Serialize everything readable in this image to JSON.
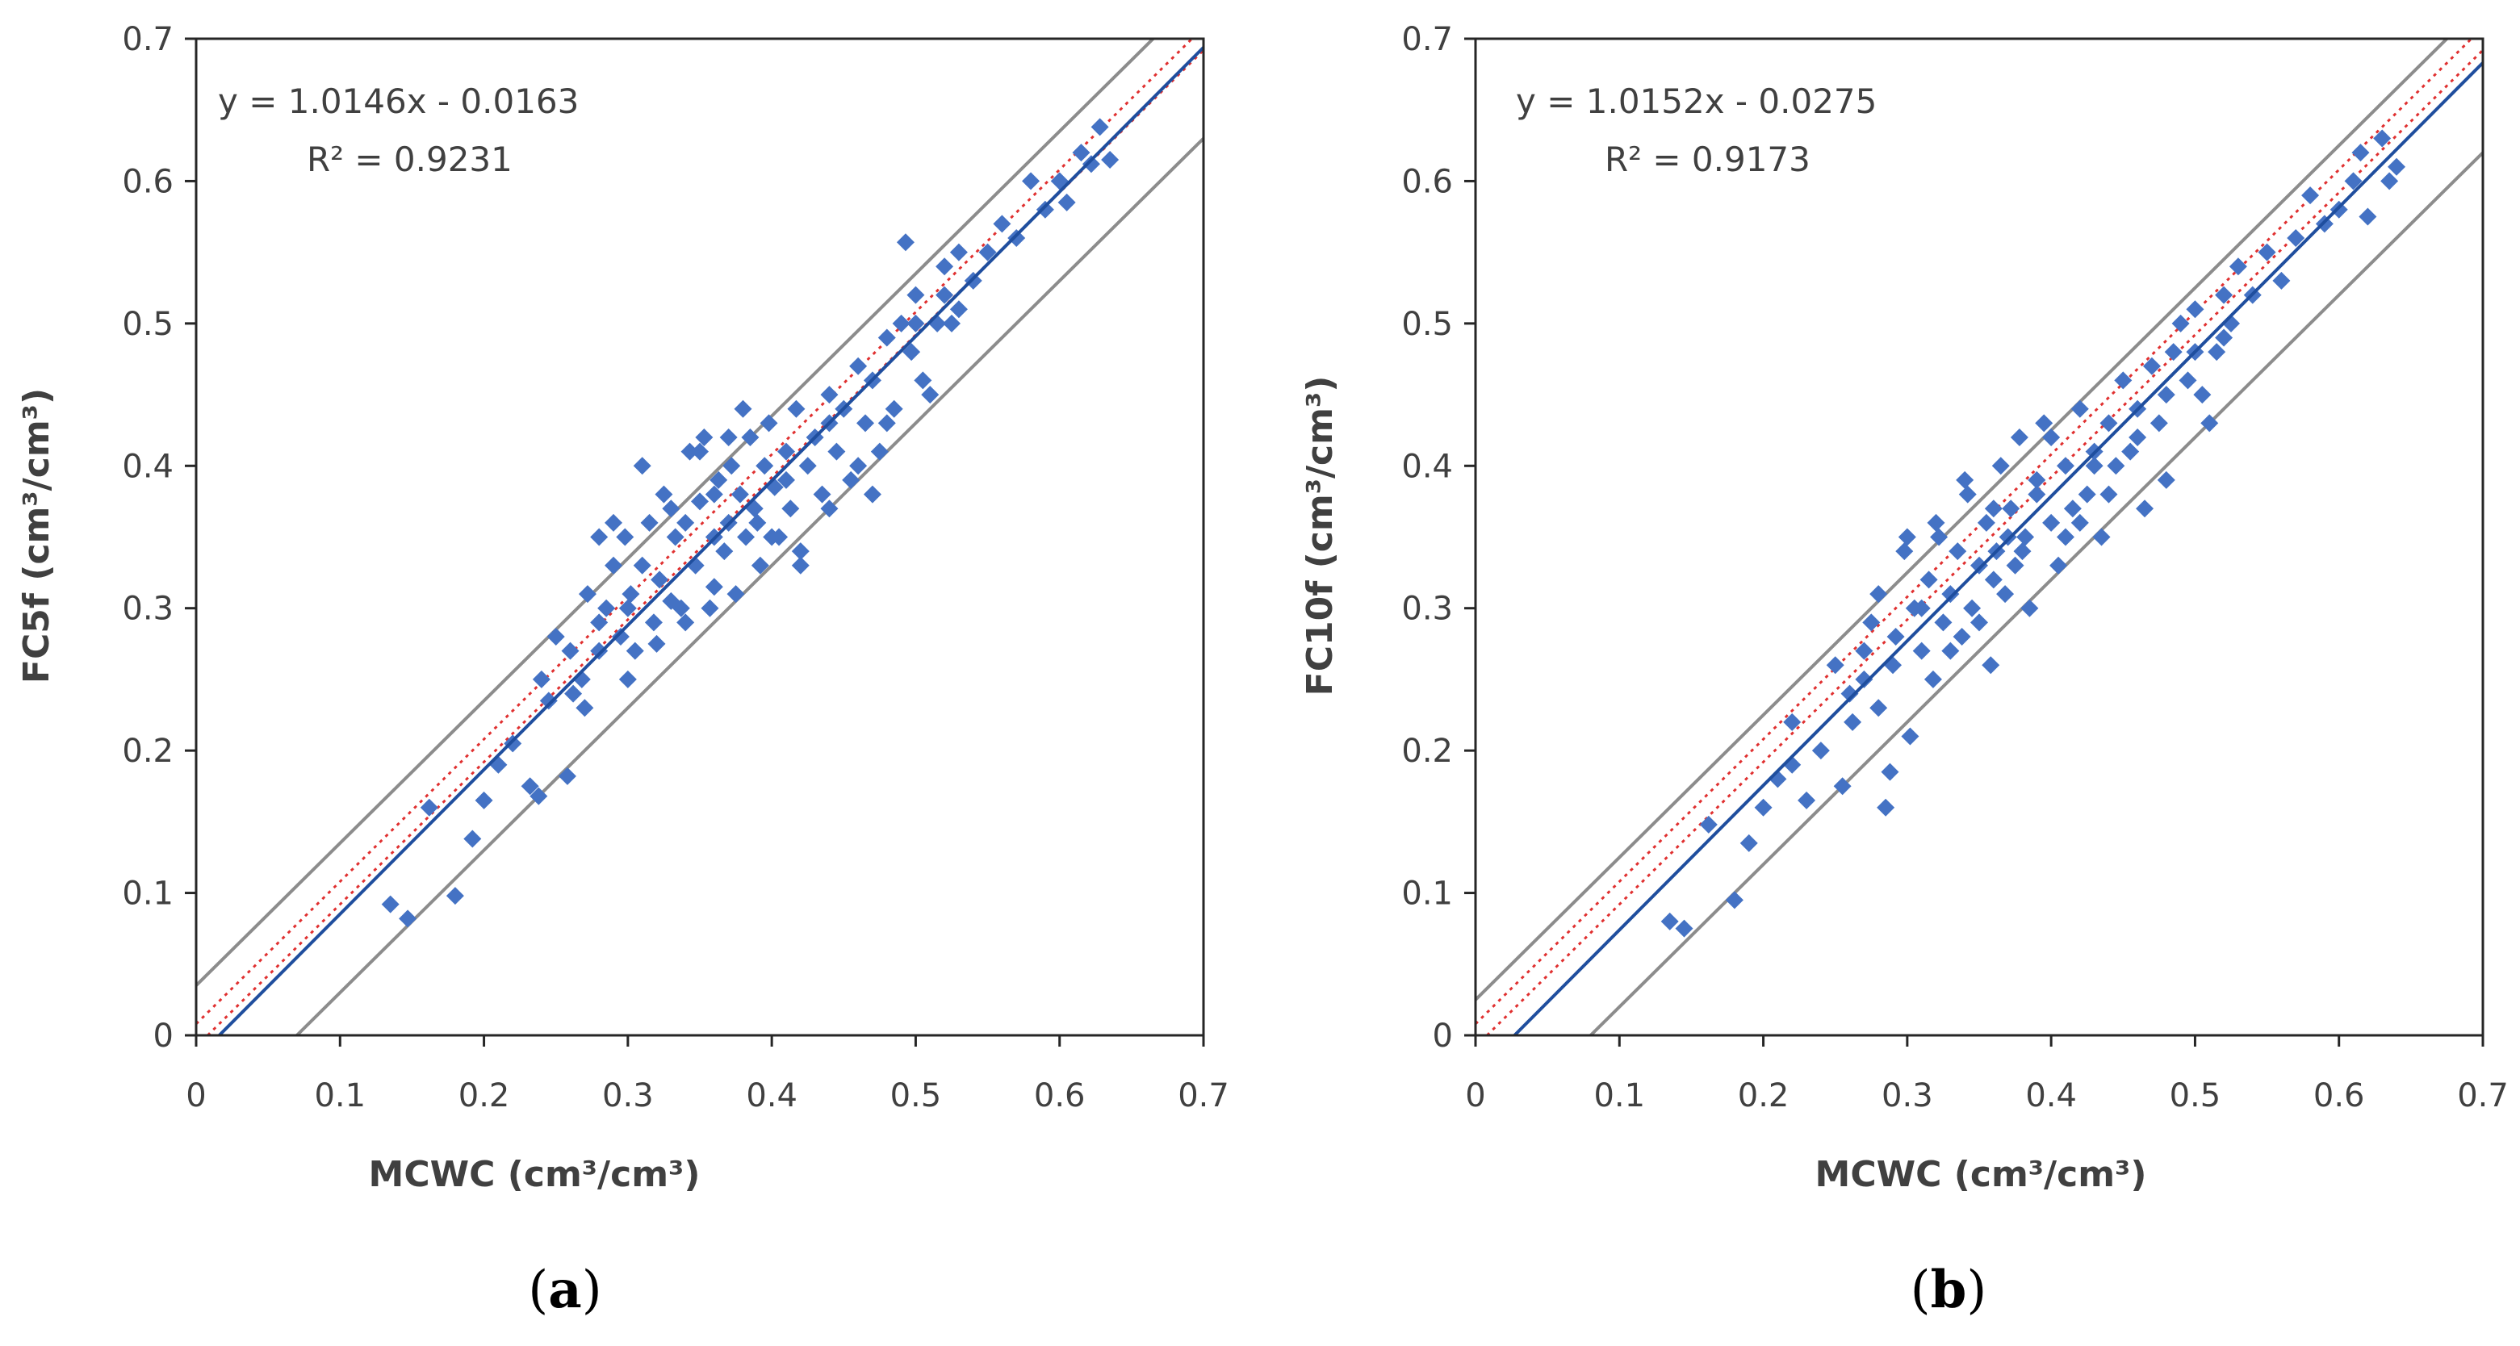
{
  "colors": {
    "points": "#4472C4",
    "fit_line": "#1F4E9E",
    "one_to_one": "#E03030",
    "bounds": "#8C8C8C",
    "axes": "#262626"
  },
  "chart_data": [
    {
      "type": "scatter",
      "panel_label": "a",
      "xlabel": "MCWC (cm³/cm³)",
      "ylabel": "FC5f (cm³/cm³)",
      "equation": "y = 1.0146x - 0.0163",
      "r2": "R² = 0.9231",
      "slope": 1.0146,
      "intercept": -0.0163,
      "band_offsets": [
        0.035,
        -0.07
      ],
      "xlim": [
        0,
        0.7
      ],
      "ylim": [
        0,
        0.7
      ],
      "xticks": [
        "0",
        "0.1",
        "0.2",
        "0.3",
        "0.4",
        "0.5",
        "0.6",
        "0.7"
      ],
      "yticks": [
        "0",
        "0.1",
        "0.2",
        "0.3",
        "0.4",
        "0.5",
        "0.6",
        "0.7"
      ],
      "points": [
        [
          0.135,
          0.092
        ],
        [
          0.147,
          0.082
        ],
        [
          0.162,
          0.16
        ],
        [
          0.18,
          0.098
        ],
        [
          0.192,
          0.138
        ],
        [
          0.2,
          0.165
        ],
        [
          0.21,
          0.19
        ],
        [
          0.22,
          0.205
        ],
        [
          0.232,
          0.175
        ],
        [
          0.238,
          0.168
        ],
        [
          0.245,
          0.235
        ],
        [
          0.25,
          0.28
        ],
        [
          0.258,
          0.182
        ],
        [
          0.262,
          0.24
        ],
        [
          0.268,
          0.25
        ],
        [
          0.272,
          0.31
        ],
        [
          0.28,
          0.27
        ],
        [
          0.285,
          0.3
        ],
        [
          0.29,
          0.33
        ],
        [
          0.295,
          0.28
        ],
        [
          0.298,
          0.35
        ],
        [
          0.302,
          0.31
        ],
        [
          0.305,
          0.27
        ],
        [
          0.31,
          0.33
        ],
        [
          0.315,
          0.36
        ],
        [
          0.318,
          0.29
        ],
        [
          0.322,
          0.32
        ],
        [
          0.325,
          0.38
        ],
        [
          0.33,
          0.305
        ],
        [
          0.333,
          0.35
        ],
        [
          0.337,
          0.3
        ],
        [
          0.34,
          0.36
        ],
        [
          0.343,
          0.41
        ],
        [
          0.347,
          0.33
        ],
        [
          0.35,
          0.375
        ],
        [
          0.353,
          0.42
        ],
        [
          0.357,
          0.3
        ],
        [
          0.36,
          0.35
        ],
        [
          0.363,
          0.39
        ],
        [
          0.367,
          0.34
        ],
        [
          0.37,
          0.36
        ],
        [
          0.372,
          0.4
        ],
        [
          0.375,
          0.31
        ],
        [
          0.378,
          0.38
        ],
        [
          0.382,
          0.35
        ],
        [
          0.385,
          0.42
        ],
        [
          0.388,
          0.37
        ],
        [
          0.392,
          0.33
        ],
        [
          0.395,
          0.4
        ],
        [
          0.398,
          0.43
        ],
        [
          0.402,
          0.385
        ],
        [
          0.405,
          0.35
        ],
        [
          0.41,
          0.41
        ],
        [
          0.413,
          0.37
        ],
        [
          0.417,
          0.44
        ],
        [
          0.42,
          0.34
        ],
        [
          0.425,
          0.4
        ],
        [
          0.43,
          0.42
        ],
        [
          0.435,
          0.38
        ],
        [
          0.44,
          0.45
        ],
        [
          0.445,
          0.41
        ],
        [
          0.45,
          0.44
        ],
        [
          0.455,
          0.39
        ],
        [
          0.46,
          0.47
        ],
        [
          0.465,
          0.43
        ],
        [
          0.47,
          0.46
        ],
        [
          0.475,
          0.41
        ],
        [
          0.48,
          0.49
        ],
        [
          0.485,
          0.44
        ],
        [
          0.49,
          0.5
        ],
        [
          0.493,
          0.557
        ],
        [
          0.497,
          0.48
        ],
        [
          0.5,
          0.52
        ],
        [
          0.505,
          0.46
        ],
        [
          0.51,
          0.45
        ],
        [
          0.515,
          0.5
        ],
        [
          0.52,
          0.54
        ],
        [
          0.525,
          0.5
        ],
        [
          0.53,
          0.55
        ],
        [
          0.54,
          0.53
        ],
        [
          0.55,
          0.55
        ],
        [
          0.56,
          0.57
        ],
        [
          0.57,
          0.56
        ],
        [
          0.58,
          0.6
        ],
        [
          0.59,
          0.58
        ],
        [
          0.6,
          0.6
        ],
        [
          0.605,
          0.585
        ],
        [
          0.615,
          0.62
        ],
        [
          0.622,
          0.612
        ],
        [
          0.628,
          0.638
        ],
        [
          0.635,
          0.615
        ],
        [
          0.31,
          0.4
        ],
        [
          0.34,
          0.29
        ],
        [
          0.29,
          0.36
        ],
        [
          0.36,
          0.315
        ],
        [
          0.28,
          0.35
        ],
        [
          0.4,
          0.35
        ],
        [
          0.27,
          0.23
        ],
        [
          0.3,
          0.25
        ],
        [
          0.47,
          0.38
        ],
        [
          0.44,
          0.37
        ],
        [
          0.42,
          0.33
        ],
        [
          0.26,
          0.27
        ],
        [
          0.35,
          0.41
        ],
        [
          0.38,
          0.44
        ],
        [
          0.24,
          0.25
        ],
        [
          0.32,
          0.275
        ],
        [
          0.33,
          0.37
        ],
        [
          0.37,
          0.42
        ],
        [
          0.39,
          0.36
        ],
        [
          0.46,
          0.4
        ],
        [
          0.48,
          0.43
        ],
        [
          0.5,
          0.5
        ],
        [
          0.52,
          0.52
        ],
        [
          0.53,
          0.51
        ],
        [
          0.44,
          0.43
        ],
        [
          0.41,
          0.39
        ],
        [
          0.36,
          0.38
        ],
        [
          0.3,
          0.3
        ],
        [
          0.28,
          0.29
        ]
      ]
    },
    {
      "type": "scatter",
      "panel_label": "b",
      "xlabel": "MCWC (cm³/cm³)",
      "ylabel": "FC10f (cm³/cm³)",
      "equation": "y = 1.0152x - 0.0275",
      "r2": "R² = 0.9173",
      "slope": 1.0152,
      "intercept": -0.0275,
      "band_offsets": [
        0.025,
        -0.08
      ],
      "xlim": [
        0,
        0.7
      ],
      "ylim": [
        0,
        0.7
      ],
      "xticks": [
        "0",
        "0.1",
        "0.2",
        "0.3",
        "0.4",
        "0.5",
        "0.6",
        "0.7"
      ],
      "yticks": [
        "0",
        "0.1",
        "0.2",
        "0.3",
        "0.4",
        "0.5",
        "0.6",
        "0.7"
      ],
      "points": [
        [
          0.135,
          0.08
        ],
        [
          0.145,
          0.075
        ],
        [
          0.162,
          0.148
        ],
        [
          0.18,
          0.095
        ],
        [
          0.19,
          0.135
        ],
        [
          0.2,
          0.16
        ],
        [
          0.21,
          0.18
        ],
        [
          0.22,
          0.19
        ],
        [
          0.23,
          0.165
        ],
        [
          0.24,
          0.2
        ],
        [
          0.25,
          0.26
        ],
        [
          0.255,
          0.175
        ],
        [
          0.262,
          0.22
        ],
        [
          0.27,
          0.25
        ],
        [
          0.275,
          0.29
        ],
        [
          0.28,
          0.23
        ],
        [
          0.285,
          0.16
        ],
        [
          0.288,
          0.185
        ],
        [
          0.292,
          0.28
        ],
        [
          0.298,
          0.34
        ],
        [
          0.302,
          0.21
        ],
        [
          0.305,
          0.3
        ],
        [
          0.31,
          0.27
        ],
        [
          0.315,
          0.32
        ],
        [
          0.318,
          0.25
        ],
        [
          0.322,
          0.35
        ],
        [
          0.325,
          0.29
        ],
        [
          0.33,
          0.31
        ],
        [
          0.335,
          0.34
        ],
        [
          0.338,
          0.28
        ],
        [
          0.342,
          0.38
        ],
        [
          0.345,
          0.3
        ],
        [
          0.35,
          0.33
        ],
        [
          0.355,
          0.36
        ],
        [
          0.358,
          0.26
        ],
        [
          0.362,
          0.34
        ],
        [
          0.365,
          0.4
        ],
        [
          0.368,
          0.31
        ],
        [
          0.372,
          0.37
        ],
        [
          0.375,
          0.33
        ],
        [
          0.378,
          0.42
        ],
        [
          0.382,
          0.35
        ],
        [
          0.385,
          0.3
        ],
        [
          0.39,
          0.38
        ],
        [
          0.395,
          0.43
        ],
        [
          0.4,
          0.36
        ],
        [
          0.405,
          0.33
        ],
        [
          0.41,
          0.4
        ],
        [
          0.415,
          0.37
        ],
        [
          0.42,
          0.44
        ],
        [
          0.425,
          0.38
        ],
        [
          0.43,
          0.41
        ],
        [
          0.435,
          0.35
        ],
        [
          0.44,
          0.43
        ],
        [
          0.445,
          0.4
        ],
        [
          0.45,
          0.46
        ],
        [
          0.455,
          0.41
        ],
        [
          0.46,
          0.44
        ],
        [
          0.465,
          0.37
        ],
        [
          0.47,
          0.47
        ],
        [
          0.475,
          0.43
        ],
        [
          0.48,
          0.39
        ],
        [
          0.485,
          0.48
        ],
        [
          0.49,
          0.5
        ],
        [
          0.495,
          0.46
        ],
        [
          0.5,
          0.51
        ],
        [
          0.505,
          0.45
        ],
        [
          0.51,
          0.43
        ],
        [
          0.515,
          0.48
        ],
        [
          0.52,
          0.52
        ],
        [
          0.525,
          0.5
        ],
        [
          0.53,
          0.54
        ],
        [
          0.54,
          0.52
        ],
        [
          0.55,
          0.55
        ],
        [
          0.56,
          0.53
        ],
        [
          0.57,
          0.56
        ],
        [
          0.58,
          0.59
        ],
        [
          0.59,
          0.57
        ],
        [
          0.6,
          0.58
        ],
        [
          0.61,
          0.6
        ],
        [
          0.615,
          0.62
        ],
        [
          0.62,
          0.575
        ],
        [
          0.63,
          0.63
        ],
        [
          0.635,
          0.6
        ],
        [
          0.64,
          0.61
        ],
        [
          0.3,
          0.35
        ],
        [
          0.32,
          0.36
        ],
        [
          0.34,
          0.39
        ],
        [
          0.36,
          0.32
        ],
        [
          0.38,
          0.34
        ],
        [
          0.28,
          0.31
        ],
        [
          0.26,
          0.24
        ],
        [
          0.33,
          0.27
        ],
        [
          0.4,
          0.42
        ],
        [
          0.42,
          0.36
        ],
        [
          0.44,
          0.38
        ],
        [
          0.46,
          0.42
        ],
        [
          0.35,
          0.29
        ],
        [
          0.37,
          0.35
        ],
        [
          0.39,
          0.39
        ],
        [
          0.31,
          0.3
        ],
        [
          0.29,
          0.26
        ],
        [
          0.27,
          0.27
        ],
        [
          0.36,
          0.37
        ],
        [
          0.41,
          0.35
        ],
        [
          0.43,
          0.4
        ],
        [
          0.48,
          0.45
        ],
        [
          0.5,
          0.48
        ],
        [
          0.52,
          0.49
        ],
        [
          0.22,
          0.22
        ]
      ]
    }
  ]
}
